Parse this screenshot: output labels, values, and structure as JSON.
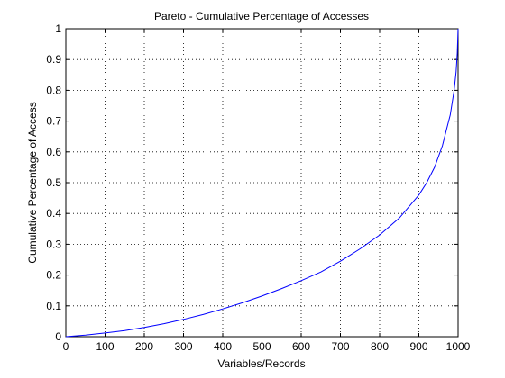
{
  "chart_data": {
    "type": "line",
    "title": "Pareto - Cumulative Percentage of Accesses",
    "xlabel": "Variables/Records",
    "ylabel": "Cumulative Percentage of Access",
    "xlim": [
      0,
      1000
    ],
    "ylim": [
      0,
      1
    ],
    "xticks": [
      0,
      100,
      200,
      300,
      400,
      500,
      600,
      700,
      800,
      900,
      1000
    ],
    "yticks": [
      0,
      0.1,
      0.2,
      0.3,
      0.4,
      0.5,
      0.6,
      0.7,
      0.8,
      0.9,
      1
    ],
    "xtick_labels": [
      "0",
      "100",
      "200",
      "300",
      "400",
      "500",
      "600",
      "700",
      "800",
      "900",
      "1000"
    ],
    "ytick_labels": [
      "0",
      "0.1",
      "0.2",
      "0.3",
      "0.4",
      "0.5",
      "0.6",
      "0.7",
      "0.8",
      "0.9",
      "1"
    ],
    "grid": true,
    "series_color": "#0000ff",
    "series": [
      {
        "x": [
          0,
          50,
          100,
          150,
          200,
          250,
          300,
          350,
          400,
          450,
          500,
          550,
          600,
          650,
          700,
          750,
          800,
          850,
          900,
          920,
          940,
          960,
          970,
          980,
          990,
          995,
          998,
          1000
        ],
        "y": [
          0,
          0.005,
          0.012,
          0.02,
          0.03,
          0.042,
          0.056,
          0.072,
          0.09,
          0.11,
          0.132,
          0.156,
          0.182,
          0.21,
          0.245,
          0.285,
          0.33,
          0.385,
          0.46,
          0.5,
          0.55,
          0.62,
          0.67,
          0.72,
          0.8,
          0.86,
          0.92,
          1.0
        ]
      }
    ]
  }
}
